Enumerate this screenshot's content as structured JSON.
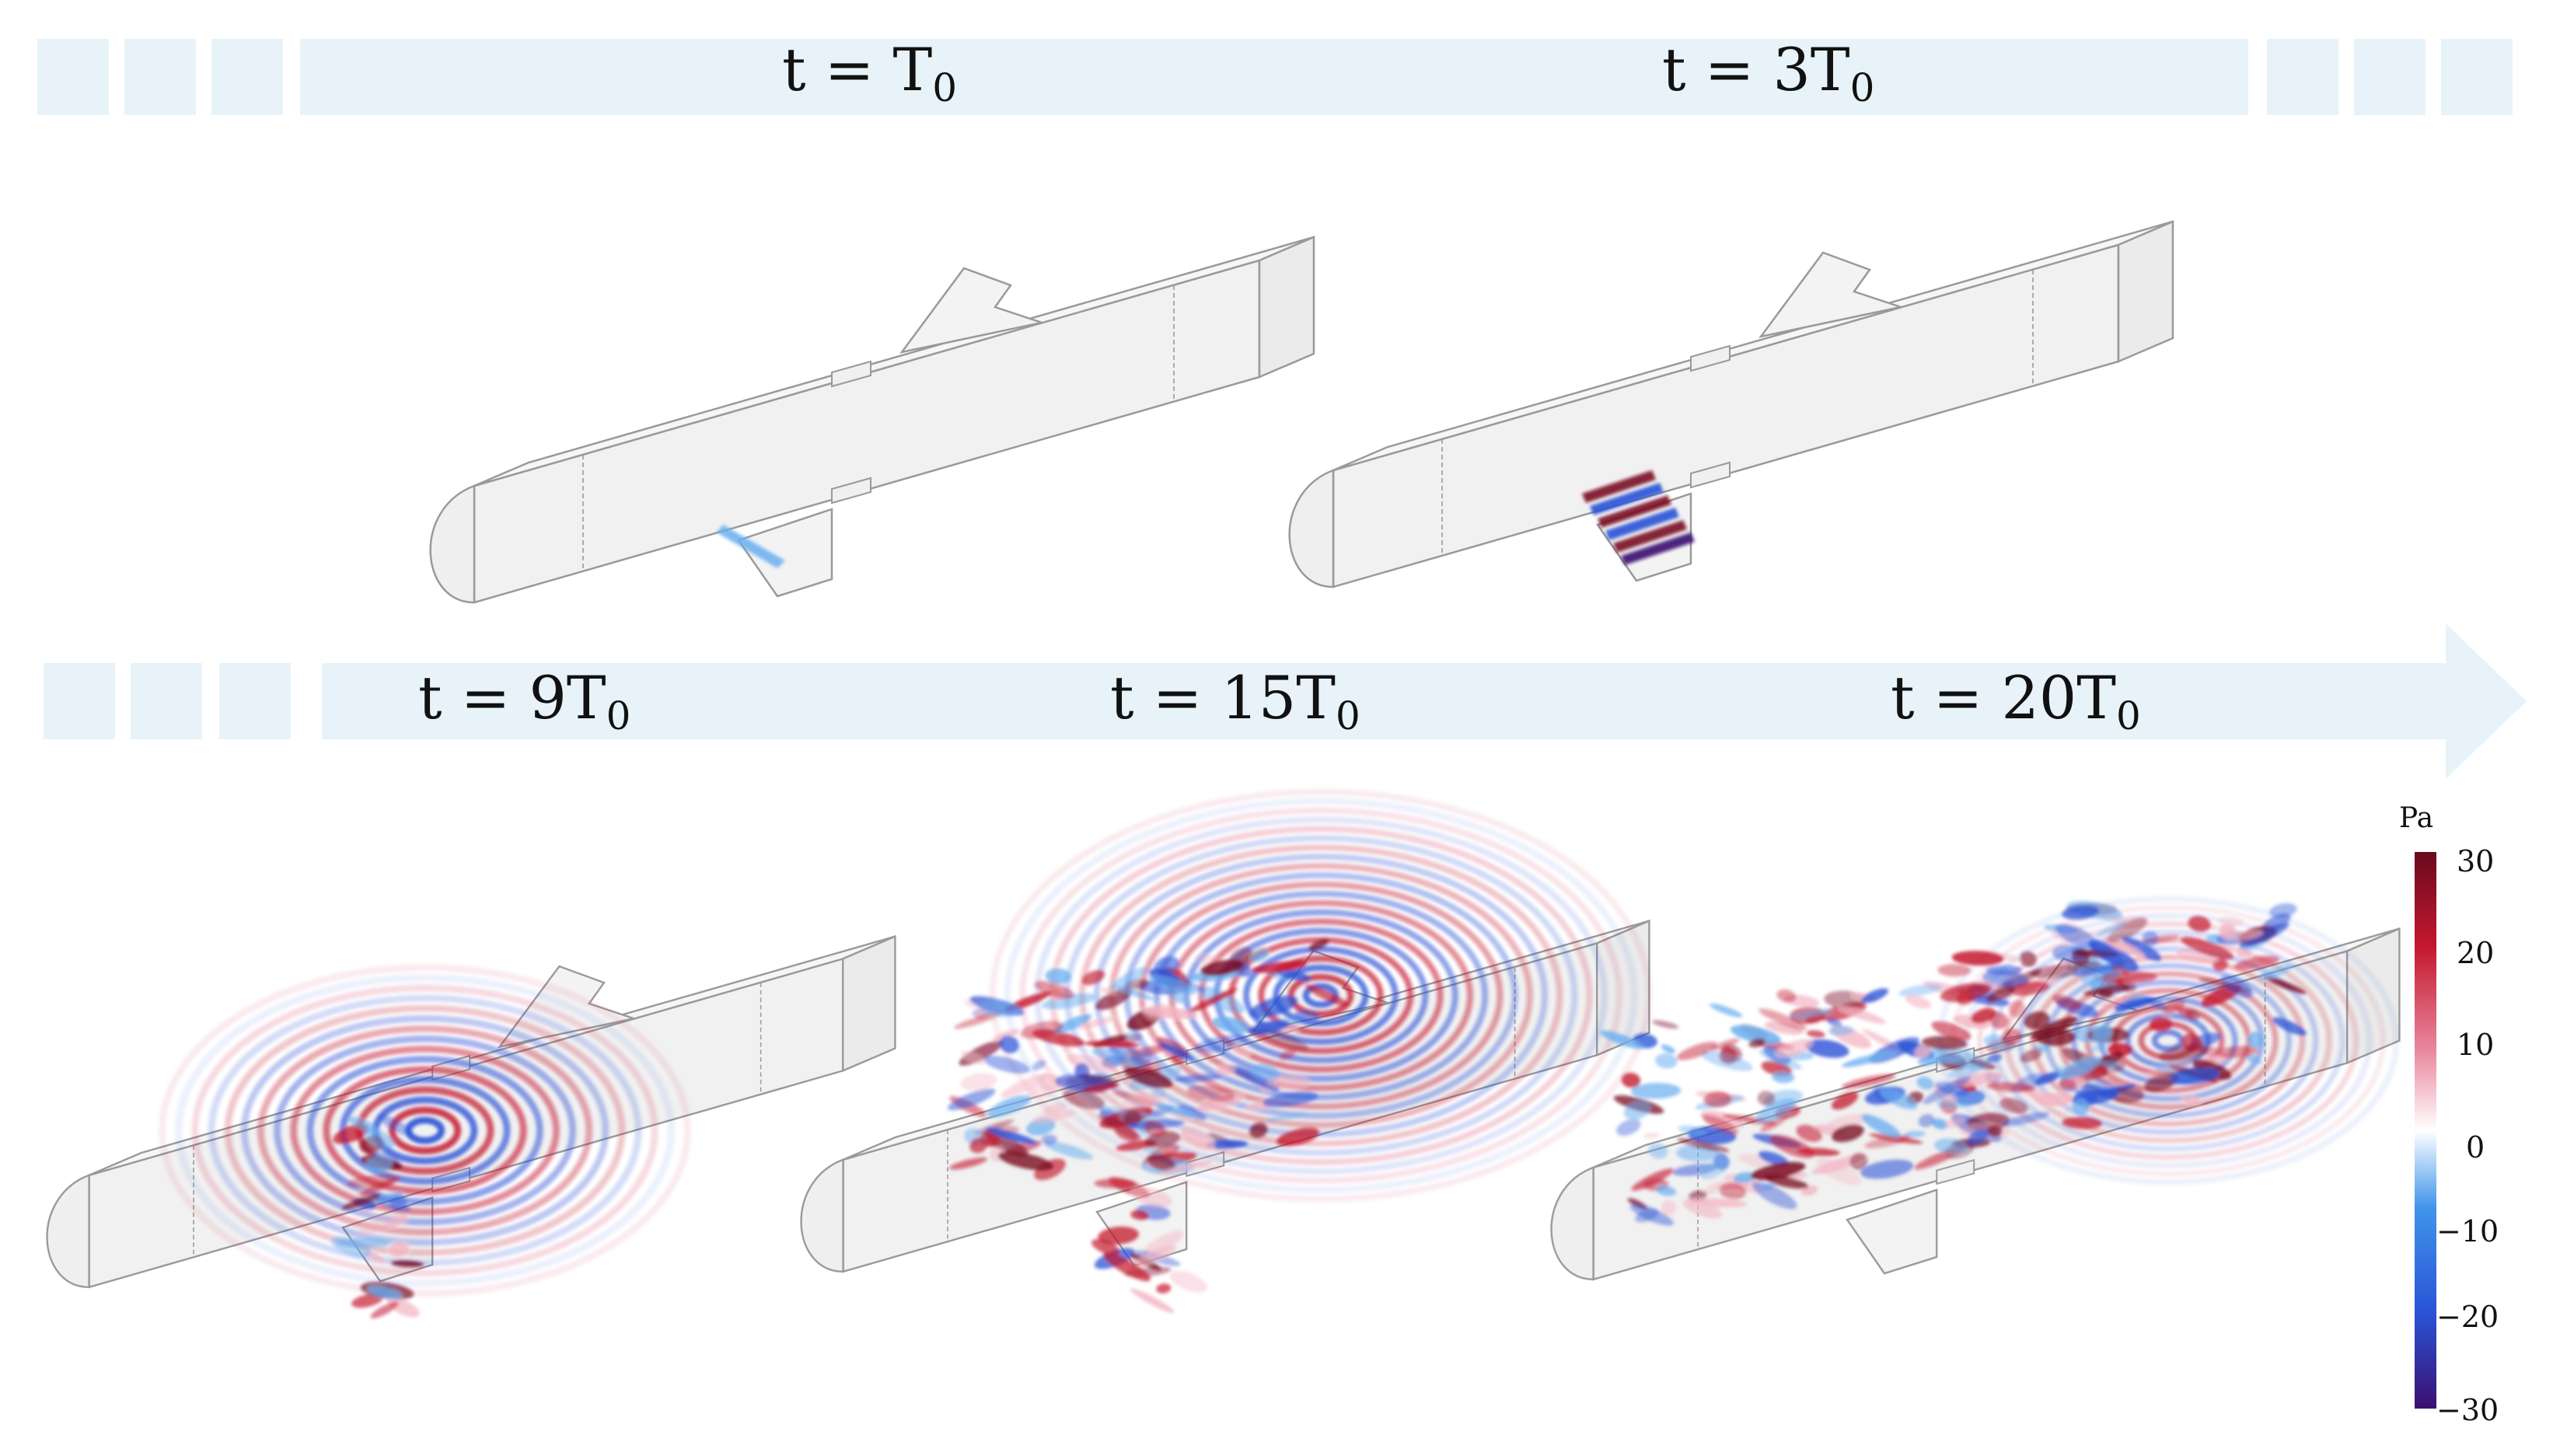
{
  "timeline": {
    "row1_labels": [
      {
        "prefix": "t = ",
        "coef": "",
        "sym": "T",
        "sub": "0"
      },
      {
        "prefix": "t = ",
        "coef": "3",
        "sym": "T",
        "sub": "0"
      }
    ],
    "row2_labels": [
      {
        "prefix": "t = ",
        "coef": "9",
        "sym": "T",
        "sub": "0"
      },
      {
        "prefix": "t = ",
        "coef": "15",
        "sym": "T",
        "sub": "0"
      },
      {
        "prefix": "t = ",
        "coef": "20",
        "sym": "T",
        "sub": "0"
      }
    ],
    "bar_color": "#e7f3f9"
  },
  "colorbar": {
    "unit": "Pa",
    "ticks": [
      "30",
      "20",
      "10",
      "0",
      "−10",
      "−20",
      "−30"
    ],
    "min": -30,
    "max": 30,
    "colors": [
      "#3b0f70",
      "#2a52d6",
      "#3f94ea",
      "#ffffff",
      "#ea8aa0",
      "#c4182e",
      "#6a0a1e"
    ]
  },
  "duct_color": "#f1f1f1",
  "duct_edge_color": "#9a9a9a"
}
